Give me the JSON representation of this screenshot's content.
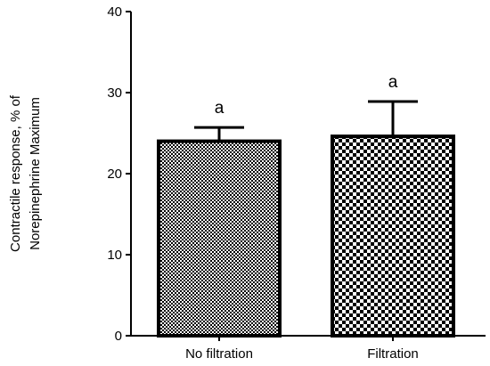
{
  "chart_data": {
    "type": "bar",
    "categories": [
      "No filtration",
      "Filtration"
    ],
    "values": [
      24,
      24.6
    ],
    "error_upper": [
      1.7,
      4.3
    ],
    "data_labels": [
      "a",
      "a"
    ],
    "title": "",
    "xlabel": "",
    "ylabel_lines": [
      "Contractile response, % of",
      "Norepinephrine Maximum"
    ],
    "ylim": [
      0,
      40
    ],
    "yticks": [
      "0",
      "10",
      "20",
      "30",
      "40"
    ],
    "grid": false,
    "legend": "none",
    "bar_fill_patterns": [
      "fine-checkerboard",
      "coarse-checkerboard"
    ],
    "colors": {
      "bar_stroke": "#000000",
      "pattern_dark": "#000000",
      "pattern_light": "#ffffff"
    }
  }
}
